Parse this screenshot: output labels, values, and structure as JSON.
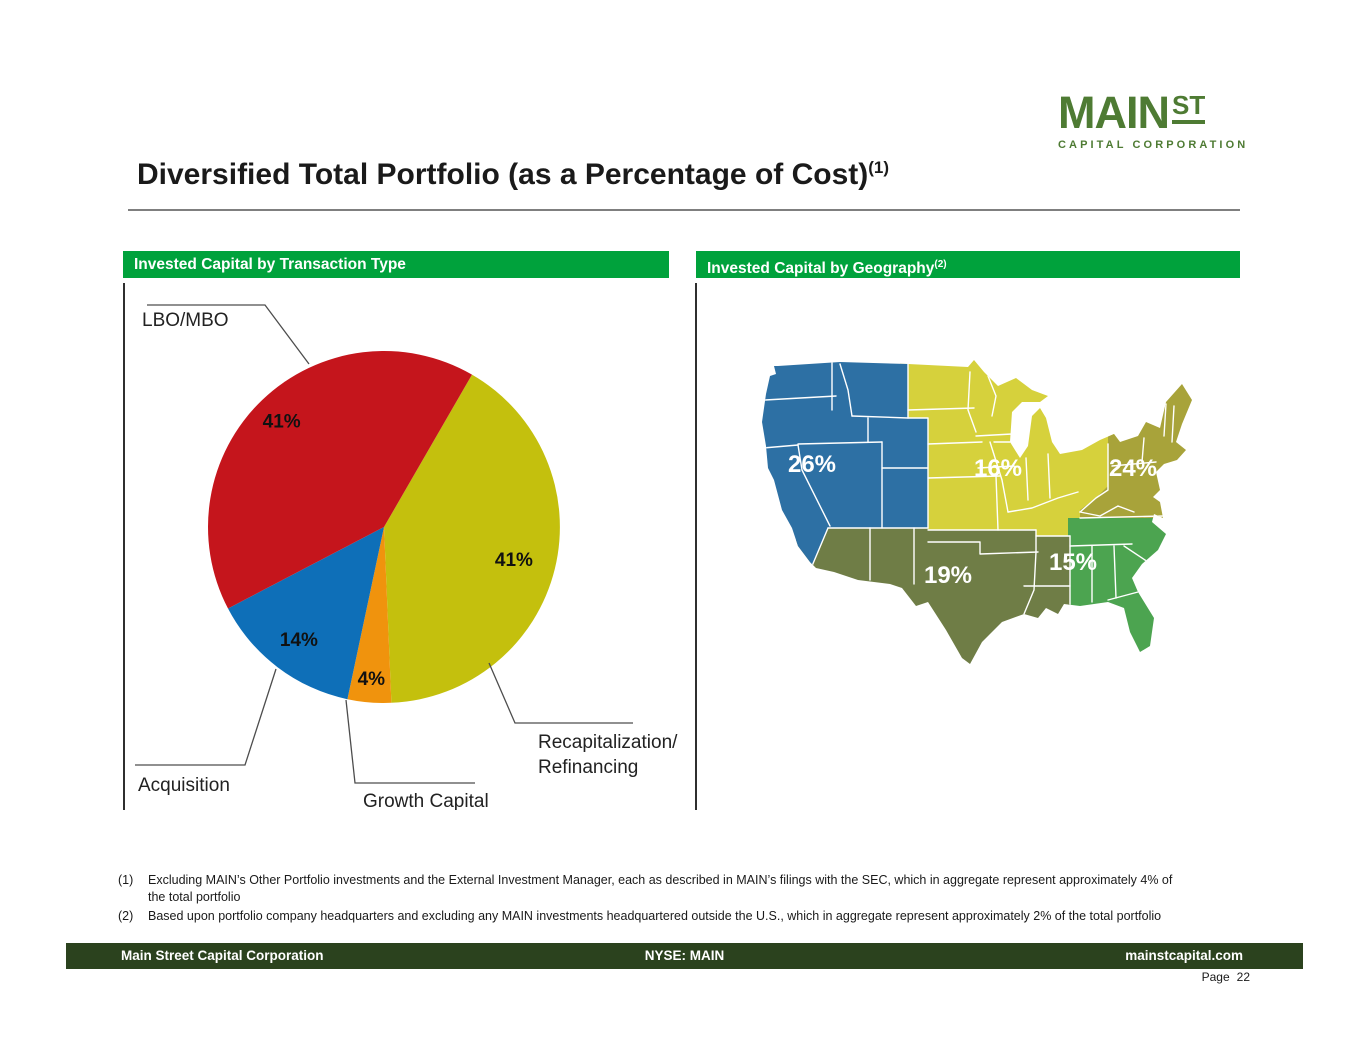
{
  "logo": {
    "main": "MAIN",
    "st": "ST",
    "subtitle": "CAPITAL CORPORATION",
    "color": "#4e7b33"
  },
  "title": {
    "text": "Diversified Total Portfolio (as a Percentage of Cost)",
    "superscript": "(1)"
  },
  "theme": {
    "header_bar_green": "#00a23c",
    "footer_bar_green": "#2b421e"
  },
  "panels": {
    "left": {
      "header": "Invested Capital by Transaction Type",
      "header_superscript": ""
    },
    "right": {
      "header": "Invested Capital by Geography",
      "header_superscript": "(2)"
    }
  },
  "chart_data": [
    {
      "type": "pie",
      "title": "Invested Capital by Transaction Type",
      "start_angle_deg": 30,
      "legend_position": "callouts",
      "slices": [
        {
          "label": "Recapitalization/Refinancing",
          "label_lines": [
            "Recapitalization/",
            "Refinancing"
          ],
          "value": 41,
          "display": "41%",
          "color": "#c4c00d"
        },
        {
          "label": "Growth Capital",
          "value": 4,
          "display": "4%",
          "color": "#f0930d"
        },
        {
          "label": "Acquisition",
          "value": 14,
          "display": "14%",
          "color": "#0e6fb8"
        },
        {
          "label": "LBO/MBO",
          "value": 41,
          "display": "41%",
          "color": "#c5151c"
        }
      ]
    },
    {
      "type": "choropleth-map",
      "title": "Invested Capital by Geography",
      "regions": [
        {
          "name": "West",
          "value": 26,
          "display": "26%",
          "color": "#2d70a4"
        },
        {
          "name": "Midwest",
          "value": 16,
          "display": "16%",
          "color": "#d6d13c"
        },
        {
          "name": "Northeast",
          "value": 24,
          "display": "24%",
          "color": "#a8a33a"
        },
        {
          "name": "Southwest",
          "value": 19,
          "display": "19%",
          "color": "#6f7d46"
        },
        {
          "name": "Southeast",
          "value": 15,
          "display": "15%",
          "color": "#4ca450"
        }
      ]
    }
  ],
  "footnotes": [
    {
      "marker": "(1)",
      "text": "Excluding MAIN’s Other Portfolio investments and the External Investment Manager, each as described in MAIN’s filings with the SEC, which in aggregate represent approximately 4% of the total portfolio"
    },
    {
      "marker": "(2)",
      "text": "Based upon portfolio company headquarters and excluding any MAIN investments headquartered outside the U.S., which in aggregate represent approximately 2% of the total portfolio"
    }
  ],
  "footer": {
    "left": "Main Street Capital Corporation",
    "center": "NYSE: MAIN",
    "right": "mainstcapital.com",
    "page_label": "Page",
    "page_number": "22"
  }
}
